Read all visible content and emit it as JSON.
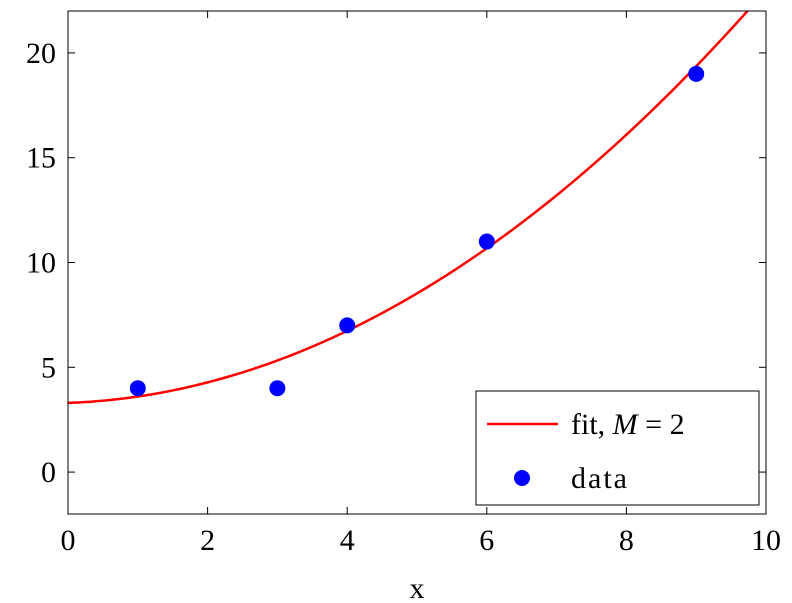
{
  "chart_data": {
    "type": "scatter",
    "xlabel": "x",
    "ylabel": "",
    "title": "",
    "xlim": [
      0,
      10
    ],
    "ylim": [
      -2,
      22
    ],
    "xticks": [
      "0",
      "2",
      "4",
      "6",
      "8",
      "10"
    ],
    "yticks": [
      "0",
      "5",
      "10",
      "15",
      "20"
    ],
    "grid": false,
    "legend_position": "bottom-right",
    "series": [
      {
        "name": "fit, M = 2",
        "kind": "line",
        "color": "#ff0000",
        "coefficients": [
          3.3,
          0.12,
          0.185
        ],
        "x_range": [
          0,
          10
        ]
      },
      {
        "name": "data",
        "kind": "scatter",
        "color": "#0000ff",
        "x": [
          1,
          3,
          4,
          6,
          9
        ],
        "y": [
          4,
          4,
          7,
          11,
          19
        ]
      }
    ],
    "legend": {
      "fit_prefix": "fit, ",
      "fit_var": "M",
      "fit_suffix": " = 2",
      "data_label": "data"
    }
  }
}
